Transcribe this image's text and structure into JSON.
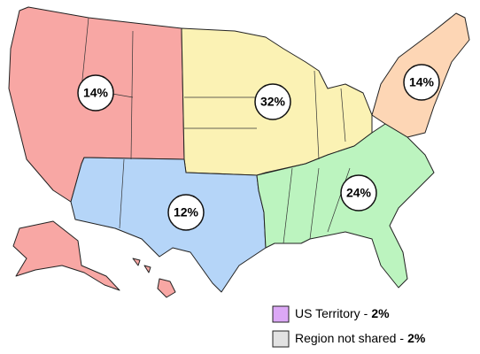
{
  "chart_data": {
    "type": "map",
    "values": [
      14,
      32,
      14,
      12,
      24
    ],
    "value_labels": [
      "14%",
      "32%",
      "14%",
      "12%",
      "24%"
    ],
    "colors": [
      "#f8a7a4",
      "#fbf2b4",
      "#fdd6b5",
      "#b5d5f8",
      "#bcf4bf"
    ],
    "legend_separator": "-",
    "legend": [
      {
        "name": "US Territory",
        "color": "#dca8f6",
        "value": 2,
        "value_label": "2%"
      },
      {
        "name": "Region not shared",
        "color": "#e2e2e2",
        "value": 2,
        "value_label": "2%"
      }
    ]
  }
}
